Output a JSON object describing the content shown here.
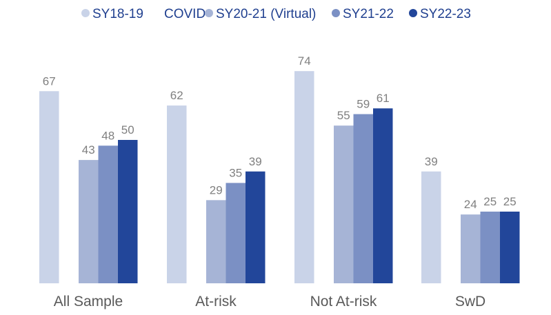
{
  "chart_data": {
    "type": "bar",
    "categories": [
      "All Sample",
      "At-risk",
      "Not At-risk",
      "SwD"
    ],
    "series": [
      {
        "name": "SY18-19",
        "values": [
          67,
          62,
          74,
          39
        ],
        "color": "#c9d3e8"
      },
      {
        "name": "COVID",
        "values": [
          null,
          null,
          null,
          null
        ],
        "color": "#ffffff"
      },
      {
        "name": "SY20-21 (Virtual)",
        "values": [
          43,
          29,
          55,
          24
        ],
        "color": "#a6b4d6"
      },
      {
        "name": "SY21-22",
        "values": [
          48,
          35,
          59,
          25
        ],
        "color": "#7b90c4"
      },
      {
        "name": "SY22-23",
        "values": [
          50,
          39,
          61,
          25
        ],
        "color": "#22469a"
      }
    ],
    "title": "",
    "xlabel": "",
    "ylabel": "",
    "ylim": [
      0,
      80
    ],
    "grid": false,
    "legend_position": "top",
    "data_labels": true
  }
}
